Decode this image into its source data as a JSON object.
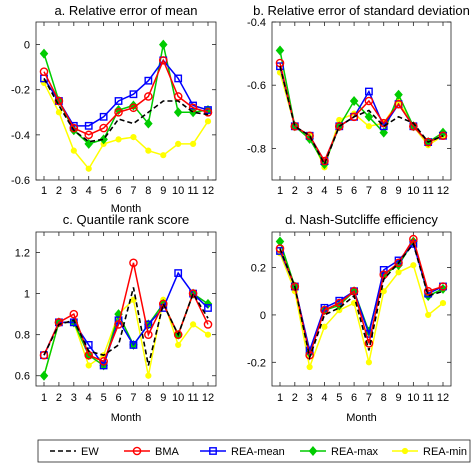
{
  "figure": {
    "x_tick_labels": [
      "1",
      "2",
      "3",
      "4",
      "5",
      "6",
      "7",
      "8",
      "9",
      "10",
      "11",
      "12"
    ],
    "series_styles": {
      "EW": {
        "color": "#000000",
        "dash": "5,3",
        "marker": "none"
      },
      "BMA": {
        "color": "#ff0000",
        "dash": "",
        "marker": "circle"
      },
      "REA-mean": {
        "color": "#0000ff",
        "dash": "",
        "marker": "square"
      },
      "REA-max": {
        "color": "#00cc00",
        "dash": "",
        "marker": "diamond"
      },
      "REA-min": {
        "color": "#ffff00",
        "dash": "",
        "marker": "circle-small"
      }
    }
  },
  "legend": {
    "position": "bottom",
    "items": [
      {
        "key": "EW",
        "label": "EW"
      },
      {
        "key": "BMA",
        "label": "BMA"
      },
      {
        "key": "REA-mean",
        "label": "REA-mean"
      },
      {
        "key": "REA-max",
        "label": "REA-max"
      },
      {
        "key": "REA-min",
        "label": "REA-min"
      }
    ]
  },
  "chart_data": [
    {
      "type": "line",
      "title": "a. Relative error of mean",
      "xlabel": "Month",
      "ylabel": "",
      "x": [
        1,
        2,
        3,
        4,
        5,
        6,
        7,
        8,
        9,
        10,
        11,
        12
      ],
      "ylim": [
        -0.6,
        0.1
      ],
      "yticks": [
        0,
        -0.2,
        -0.4,
        -0.6
      ],
      "ytick_labels": [
        "0",
        "-0.2",
        "-0.4",
        "-0.6"
      ],
      "series": [
        {
          "name": "EW",
          "values": [
            -0.15,
            -0.27,
            -0.38,
            -0.43,
            -0.42,
            -0.33,
            -0.35,
            -0.3,
            -0.25,
            -0.25,
            -0.3,
            -0.31
          ]
        },
        {
          "name": "BMA",
          "values": [
            -0.12,
            -0.25,
            -0.37,
            -0.4,
            -0.37,
            -0.3,
            -0.28,
            -0.23,
            -0.07,
            -0.23,
            -0.28,
            -0.3
          ]
        },
        {
          "name": "REA-mean",
          "values": [
            -0.15,
            -0.25,
            -0.36,
            -0.36,
            -0.32,
            -0.25,
            -0.22,
            -0.16,
            -0.07,
            -0.15,
            -0.27,
            -0.29
          ]
        },
        {
          "name": "REA-max",
          "values": [
            -0.04,
            -0.25,
            -0.38,
            -0.44,
            -0.42,
            -0.29,
            -0.27,
            -0.35,
            0.0,
            -0.3,
            -0.3,
            -0.29
          ]
        },
        {
          "name": "REA-min",
          "values": [
            -0.17,
            -0.3,
            -0.47,
            -0.55,
            -0.44,
            -0.42,
            -0.41,
            -0.47,
            -0.49,
            -0.44,
            -0.44,
            -0.34
          ]
        }
      ]
    },
    {
      "type": "line",
      "title": "b. Relative error of standard deviation",
      "xlabel": "",
      "ylabel": "",
      "x": [
        1,
        2,
        3,
        4,
        5,
        6,
        7,
        8,
        9,
        10,
        11,
        12
      ],
      "ylim": [
        -0.9,
        -0.4
      ],
      "yticks": [
        -0.4,
        -0.6,
        -0.8
      ],
      "ytick_labels": [
        "-0.4",
        "-0.6",
        "-0.8"
      ],
      "series": [
        {
          "name": "EW",
          "values": [
            -0.54,
            -0.73,
            -0.76,
            -0.85,
            -0.73,
            -0.7,
            -0.68,
            -0.73,
            -0.7,
            -0.72,
            -0.78,
            -0.76
          ]
        },
        {
          "name": "BMA",
          "values": [
            -0.53,
            -0.73,
            -0.76,
            -0.84,
            -0.73,
            -0.7,
            -0.65,
            -0.72,
            -0.66,
            -0.73,
            -0.78,
            -0.76
          ]
        },
        {
          "name": "REA-mean",
          "values": [
            -0.54,
            -0.73,
            -0.76,
            -0.84,
            -0.73,
            -0.7,
            -0.62,
            -0.73,
            -0.66,
            -0.73,
            -0.78,
            -0.76
          ]
        },
        {
          "name": "REA-max",
          "values": [
            -0.49,
            -0.73,
            -0.77,
            -0.85,
            -0.73,
            -0.65,
            -0.7,
            -0.75,
            -0.63,
            -0.73,
            -0.78,
            -0.75
          ]
        },
        {
          "name": "REA-min",
          "values": [
            -0.56,
            -0.73,
            -0.76,
            -0.86,
            -0.71,
            -0.69,
            -0.73,
            -0.72,
            -0.65,
            -0.73,
            -0.79,
            -0.76
          ]
        }
      ]
    },
    {
      "type": "line",
      "title": "c. Quantile rank score",
      "xlabel": "Month",
      "ylabel": "",
      "x": [
        1,
        2,
        3,
        4,
        5,
        6,
        7,
        8,
        9,
        10,
        11,
        12
      ],
      "ylim": [
        0.55,
        1.3
      ],
      "yticks": [
        1.2,
        1,
        0.8,
        0.6
      ],
      "ytick_labels": [
        "1.2",
        "1",
        "0.8",
        "0.6"
      ],
      "series": [
        {
          "name": "EW",
          "values": [
            0.7,
            0.85,
            0.87,
            0.72,
            0.7,
            0.75,
            1.03,
            0.65,
            0.95,
            0.8,
            1.0,
            0.88
          ]
        },
        {
          "name": "BMA",
          "values": [
            0.7,
            0.86,
            0.9,
            0.7,
            0.67,
            0.85,
            1.15,
            0.8,
            0.95,
            0.8,
            1.0,
            0.85
          ]
        },
        {
          "name": "REA-mean",
          "values": [
            0.7,
            0.86,
            0.86,
            0.75,
            0.65,
            0.87,
            0.75,
            0.85,
            0.93,
            1.1,
            1.0,
            0.93
          ]
        },
        {
          "name": "REA-max",
          "values": [
            0.6,
            0.86,
            0.86,
            0.7,
            0.65,
            0.9,
            0.75,
            0.85,
            0.95,
            0.8,
            1.0,
            0.95
          ]
        },
        {
          "name": "REA-min",
          "values": [
            0.6,
            0.86,
            0.86,
            0.65,
            0.7,
            0.9,
            0.97,
            0.6,
            0.97,
            0.75,
            0.85,
            0.8
          ]
        }
      ]
    },
    {
      "type": "line",
      "title": "d. Nash-Sutcliffe efficiency",
      "xlabel": "Month",
      "ylabel": "",
      "x": [
        1,
        2,
        3,
        4,
        5,
        6,
        7,
        8,
        9,
        10,
        11,
        12
      ],
      "ylim": [
        -0.3,
        0.35
      ],
      "yticks": [
        0.2,
        0,
        -0.2
      ],
      "ytick_labels": [
        "0.2",
        "0",
        "-0.2"
      ],
      "series": [
        {
          "name": "EW",
          "values": [
            0.28,
            0.12,
            -0.18,
            0.0,
            0.03,
            0.08,
            -0.15,
            0.15,
            0.22,
            0.3,
            0.08,
            0.1
          ]
        },
        {
          "name": "BMA",
          "values": [
            0.28,
            0.12,
            -0.17,
            0.02,
            0.05,
            0.1,
            -0.12,
            0.17,
            0.22,
            0.32,
            0.1,
            0.12
          ]
        },
        {
          "name": "REA-mean",
          "values": [
            0.27,
            0.12,
            -0.15,
            0.03,
            0.06,
            0.1,
            -0.08,
            0.19,
            0.23,
            0.3,
            0.09,
            0.12
          ]
        },
        {
          "name": "REA-max",
          "values": [
            0.31,
            0.12,
            -0.16,
            0.02,
            0.04,
            0.1,
            -0.07,
            0.17,
            0.21,
            0.31,
            0.08,
            0.11
          ]
        },
        {
          "name": "REA-min",
          "values": [
            0.26,
            0.1,
            -0.22,
            -0.05,
            0.02,
            0.05,
            -0.2,
            0.1,
            0.18,
            0.21,
            0.0,
            0.05
          ]
        }
      ]
    }
  ]
}
